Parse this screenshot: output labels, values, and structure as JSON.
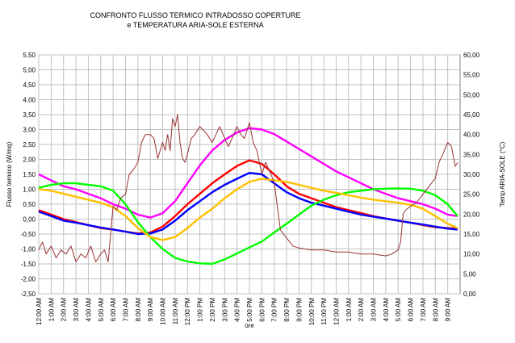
{
  "chart_data": {
    "type": "line",
    "title_lines": [
      "CONFRONTO  FLUSSO TERMICO INTRADOSSO  COPERTURE",
      "e TEMPERATURA  ARIA-SOLE ESTERNA"
    ],
    "xlabel": "ore",
    "ylabel_left": "Flusso termico (W/mq)",
    "ylabel_right": "Temp ARIA-SOLE  (°C)",
    "x_ticks": [
      "12:00 AM",
      "1:00 AM",
      "2:00 AM",
      "3:00 AM",
      "4:00 AM",
      "5:00 AM",
      "6:00 AM",
      "7:00 AM",
      "8:00 AM",
      "9:00 AM",
      "10:00 AM",
      "11:00 AM",
      "12:00 PM",
      "1:00 PM",
      "2:00 PM",
      "3:00 PM",
      "4:00 PM",
      "5:00 PM",
      "6:00 PM",
      "7:00 PM",
      "8:00 PM",
      "9:00 PM",
      "10:00 PM",
      "11:00 PM",
      "12:00 AM",
      "1:00 AM",
      "2:00 AM",
      "3:00 AM",
      "4:00 AM",
      "5:00 AM",
      "6:00 AM",
      "7:00 AM",
      "8:00 AM",
      "9:00 AM"
    ],
    "y_left_ticks": [
      "5,50",
      "5,00",
      "4,50",
      "4,00",
      "3,50",
      "3,00",
      "2,50",
      "2,00",
      "1,50",
      "1,00",
      "0,50",
      "0,00",
      "-0,50",
      "-1,00",
      "-1,50",
      "-2,00",
      "-2,50"
    ],
    "y_right_ticks": [
      "60,00",
      "55,00",
      "50,00",
      "45,00",
      "40,00",
      "35,00",
      "30,00",
      "25,00",
      "20,00",
      "15,00",
      "10,00",
      "5,00",
      "0,00"
    ],
    "ylim_left": [
      -2.5,
      5.5
    ],
    "ylim_right": [
      0,
      60
    ],
    "xlim": [
      0,
      34
    ],
    "grid": true,
    "legend": "none",
    "series": [
      {
        "axis": "left",
        "color": "#ff00ff",
        "x": [
          0,
          1,
          2,
          3,
          4,
          5,
          6,
          7,
          8,
          9,
          10,
          11,
          12,
          13,
          14,
          15,
          16,
          17,
          18,
          19,
          20,
          21,
          22,
          23,
          24,
          25,
          26,
          27,
          28,
          29,
          30,
          31,
          32,
          33,
          33.8
        ],
        "y": [
          1.5,
          1.3,
          1.1,
          1.0,
          0.85,
          0.7,
          0.5,
          0.35,
          0.15,
          0.05,
          0.2,
          0.6,
          1.2,
          1.8,
          2.3,
          2.65,
          2.9,
          3.05,
          3.0,
          2.85,
          2.6,
          2.35,
          2.1,
          1.85,
          1.6,
          1.4,
          1.2,
          1.0,
          0.85,
          0.7,
          0.6,
          0.5,
          0.35,
          0.15,
          0.1
        ]
      },
      {
        "axis": "left",
        "color": "#ff0000",
        "x": [
          0,
          1,
          2,
          3,
          4,
          5,
          6,
          7,
          8,
          9,
          10,
          11,
          12,
          13,
          14,
          15,
          16,
          17,
          18,
          19,
          20,
          21,
          22,
          23,
          24,
          25,
          26,
          27,
          28,
          29,
          30,
          31,
          32,
          33,
          33.8
        ],
        "y": [
          0.3,
          0.15,
          0.0,
          -0.1,
          -0.2,
          -0.3,
          -0.35,
          -0.42,
          -0.48,
          -0.45,
          -0.25,
          0.1,
          0.5,
          0.85,
          1.2,
          1.5,
          1.78,
          1.97,
          1.85,
          1.5,
          1.1,
          0.85,
          0.7,
          0.55,
          0.4,
          0.3,
          0.2,
          0.1,
          0.02,
          -0.05,
          -0.12,
          -0.2,
          -0.27,
          -0.3,
          -0.32
        ]
      },
      {
        "axis": "left",
        "color": "#0000ff",
        "x": [
          0,
          1,
          2,
          3,
          4,
          5,
          6,
          7,
          8,
          9,
          10,
          11,
          12,
          13,
          14,
          15,
          16,
          17,
          18,
          19,
          20,
          21,
          22,
          23,
          24,
          25,
          26,
          27,
          28,
          29,
          30,
          31,
          32,
          33,
          33.8
        ],
        "y": [
          0.25,
          0.1,
          -0.05,
          -0.12,
          -0.2,
          -0.28,
          -0.35,
          -0.42,
          -0.5,
          -0.48,
          -0.35,
          -0.05,
          0.3,
          0.6,
          0.9,
          1.15,
          1.35,
          1.55,
          1.5,
          1.2,
          0.9,
          0.7,
          0.55,
          0.45,
          0.35,
          0.25,
          0.15,
          0.08,
          0.02,
          -0.05,
          -0.12,
          -0.18,
          -0.25,
          -0.32,
          -0.35
        ]
      },
      {
        "axis": "left",
        "color": "#00ff00",
        "x": [
          0,
          1,
          2,
          3,
          4,
          5,
          6,
          7,
          8,
          9,
          10,
          11,
          12,
          13,
          14,
          15,
          16,
          17,
          18,
          19,
          20,
          21,
          22,
          23,
          24,
          25,
          26,
          27,
          28,
          29,
          30,
          31,
          32,
          33,
          33.8
        ],
        "y": [
          1.05,
          1.15,
          1.2,
          1.2,
          1.15,
          1.1,
          0.95,
          0.5,
          -0.1,
          -0.6,
          -1.0,
          -1.3,
          -1.42,
          -1.48,
          -1.5,
          -1.35,
          -1.15,
          -0.95,
          -0.75,
          -0.45,
          -0.15,
          0.15,
          0.45,
          0.65,
          0.8,
          0.9,
          0.95,
          1.0,
          1.02,
          1.03,
          1.02,
          0.95,
          0.8,
          0.5,
          0.1
        ]
      },
      {
        "axis": "left",
        "color": "#ffc000",
        "x": [
          0,
          1,
          2,
          3,
          4,
          5,
          6,
          7,
          8,
          9,
          10,
          11,
          12,
          13,
          14,
          15,
          16,
          17,
          18,
          19,
          20,
          21,
          22,
          23,
          24,
          25,
          26,
          27,
          28,
          29,
          30,
          31,
          32,
          33,
          33.8
        ],
        "y": [
          1.0,
          0.95,
          0.85,
          0.75,
          0.65,
          0.55,
          0.4,
          0.1,
          -0.3,
          -0.6,
          -0.7,
          -0.6,
          -0.3,
          0.05,
          0.35,
          0.7,
          1.0,
          1.25,
          1.35,
          1.3,
          1.25,
          1.15,
          1.05,
          0.95,
          0.88,
          0.8,
          0.72,
          0.65,
          0.6,
          0.55,
          0.48,
          0.35,
          0.1,
          -0.15,
          -0.3
        ]
      },
      {
        "axis": "right",
        "color": "#993333",
        "x": [
          0,
          0.3,
          0.6,
          1,
          1.4,
          1.8,
          2.2,
          2.6,
          3,
          3.4,
          3.8,
          4.2,
          4.6,
          5,
          5.3,
          5.6,
          6,
          6.3,
          6.6,
          7,
          7.3,
          7.6,
          8,
          8.3,
          8.6,
          9,
          9.3,
          9.6,
          10,
          10.2,
          10.4,
          10.6,
          10.8,
          11,
          11.2,
          11.4,
          11.6,
          11.8,
          12,
          12.3,
          12.6,
          13,
          13.3,
          13.6,
          14,
          14.3,
          14.6,
          15,
          15.3,
          15.6,
          16,
          16.3,
          16.6,
          17,
          17.3,
          17.6,
          18,
          18.3,
          18.6,
          19,
          19.5,
          20,
          20.5,
          21,
          22,
          23,
          24,
          25,
          26,
          27,
          28,
          28.5,
          29,
          29.2,
          29.4,
          29.6,
          30,
          30.5,
          31,
          31.5,
          32,
          32.3,
          32.6,
          33,
          33.3,
          33.6,
          33.8
        ],
        "y": [
          11,
          13,
          10,
          12,
          9,
          11,
          10,
          12,
          8,
          10,
          9,
          12,
          8,
          10,
          11,
          8,
          22,
          21,
          24,
          25,
          30,
          31,
          33,
          38,
          40,
          40,
          39,
          34,
          38,
          36,
          40,
          36,
          44,
          42,
          45,
          38,
          34,
          33,
          35,
          39,
          40,
          42,
          41,
          40,
          38,
          40,
          42,
          39,
          37,
          39,
          42,
          40,
          39,
          43,
          38,
          36,
          30,
          33,
          31,
          28,
          16,
          14,
          12,
          11.5,
          11,
          11,
          10.5,
          10.5,
          10,
          10,
          9.5,
          10,
          11,
          13,
          20,
          21,
          22,
          23,
          25,
          27,
          29,
          33,
          35,
          38,
          37,
          32,
          33
        ]
      }
    ]
  }
}
